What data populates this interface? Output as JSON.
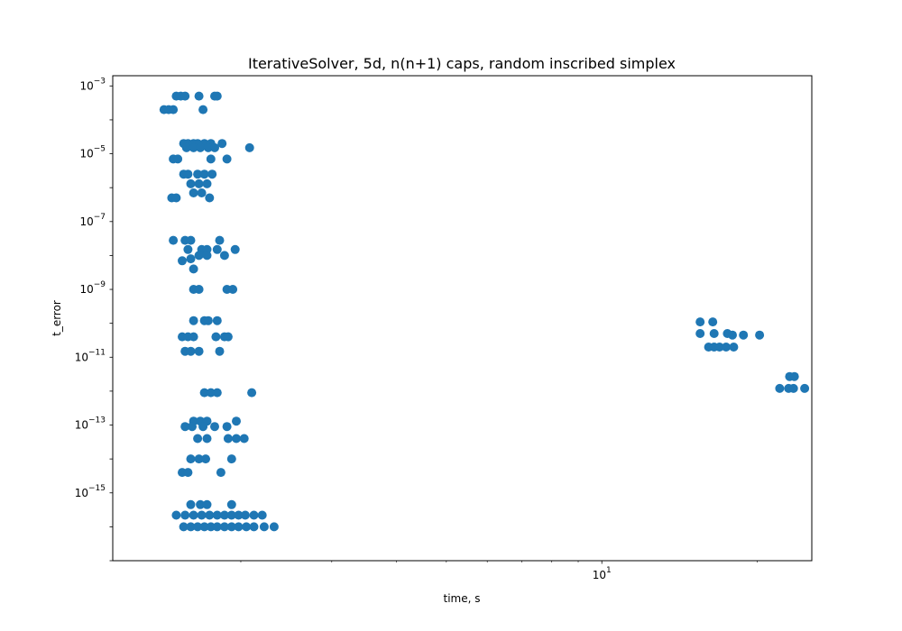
{
  "chart_data": {
    "type": "scatter",
    "title": "IterativeSolver, 5d, n(n+1) caps, random inscribed simplex",
    "xlabel": "time, s",
    "ylabel": "t_error",
    "xscale": "log",
    "yscale": "log",
    "xlim": [
      1.13,
      25.5
    ],
    "ylim": [
      1e-17,
      0.002
    ],
    "grid": false,
    "marker_color": "#1f77b4",
    "x_ticks": [
      {
        "value": 10,
        "label": "10^1"
      }
    ],
    "y_ticks": [
      {
        "value": 0.001,
        "label": "10^-3"
      },
      {
        "value": 1e-05,
        "label": "10^-5"
      },
      {
        "value": 1e-07,
        "label": "10^-7"
      },
      {
        "value": 1e-09,
        "label": "10^-9"
      },
      {
        "value": 1e-11,
        "label": "10^-11"
      },
      {
        "value": 1e-13,
        "label": "10^-13"
      },
      {
        "value": 1e-15,
        "label": "10^-15"
      }
    ],
    "series": [
      {
        "values": [
          [
            1.42,
            0.0002
          ],
          [
            1.45,
            0.0002
          ],
          [
            1.48,
            0.0002
          ],
          [
            1.5,
            0.0005
          ],
          [
            1.53,
            0.0005
          ],
          [
            1.56,
            0.0005
          ],
          [
            1.66,
            0.0005
          ],
          [
            1.69,
            0.0002
          ],
          [
            1.78,
            0.0005
          ],
          [
            1.8,
            0.0005
          ],
          [
            1.55,
            2e-05
          ],
          [
            1.58,
            2e-05
          ],
          [
            1.62,
            2e-05
          ],
          [
            1.65,
            2e-05
          ],
          [
            1.7,
            2e-05
          ],
          [
            1.75,
            2e-05
          ],
          [
            1.84,
            2e-05
          ],
          [
            1.57,
            1.5e-05
          ],
          [
            1.62,
            1.5e-05
          ],
          [
            1.67,
            1.5e-05
          ],
          [
            1.73,
            1.5e-05
          ],
          [
            1.78,
            1.5e-05
          ],
          [
            2.08,
            1.5e-05
          ],
          [
            1.48,
            7e-06
          ],
          [
            1.51,
            7e-06
          ],
          [
            1.75,
            7e-06
          ],
          [
            1.88,
            7e-06
          ],
          [
            1.55,
            2.5e-06
          ],
          [
            1.58,
            2.5e-06
          ],
          [
            1.65,
            2.5e-06
          ],
          [
            1.7,
            2.5e-06
          ],
          [
            1.76,
            2.5e-06
          ],
          [
            1.6,
            1.3e-06
          ],
          [
            1.66,
            1.3e-06
          ],
          [
            1.72,
            1.3e-06
          ],
          [
            1.62,
            7e-07
          ],
          [
            1.68,
            7e-07
          ],
          [
            1.47,
            5e-07
          ],
          [
            1.5,
            5e-07
          ],
          [
            1.74,
            5e-07
          ],
          [
            1.48,
            2.8e-08
          ],
          [
            1.56,
            2.8e-08
          ],
          [
            1.6,
            2.8e-08
          ],
          [
            1.82,
            2.8e-08
          ],
          [
            1.58,
            1.5e-08
          ],
          [
            1.68,
            1.5e-08
          ],
          [
            1.72,
            1.5e-08
          ],
          [
            1.8,
            1.5e-08
          ],
          [
            1.95,
            1.5e-08
          ],
          [
            1.54,
            7e-09
          ],
          [
            1.6,
            8e-09
          ],
          [
            1.66,
            1e-08
          ],
          [
            1.72,
            1e-08
          ],
          [
            1.86,
            1e-08
          ],
          [
            1.62,
            4e-09
          ],
          [
            1.62,
            1e-09
          ],
          [
            1.66,
            1e-09
          ],
          [
            1.88,
            1e-09
          ],
          [
            1.93,
            1e-09
          ],
          [
            1.62,
            1.2e-10
          ],
          [
            1.7,
            1.2e-10
          ],
          [
            1.73,
            1.2e-10
          ],
          [
            1.8,
            1.2e-10
          ],
          [
            1.54,
            4e-11
          ],
          [
            1.58,
            4e-11
          ],
          [
            1.62,
            4e-11
          ],
          [
            1.79,
            4e-11
          ],
          [
            1.86,
            4e-11
          ],
          [
            1.89,
            4e-11
          ],
          [
            1.56,
            1.5e-11
          ],
          [
            1.6,
            1.5e-11
          ],
          [
            1.66,
            1.5e-11
          ],
          [
            1.82,
            1.5e-11
          ],
          [
            1.7,
            9e-13
          ],
          [
            1.75,
            9e-13
          ],
          [
            1.8,
            9e-13
          ],
          [
            2.1,
            9e-13
          ],
          [
            1.62,
            1.3e-13
          ],
          [
            1.67,
            1.3e-13
          ],
          [
            1.72,
            1.3e-13
          ],
          [
            1.96,
            1.3e-13
          ],
          [
            1.56,
            9e-14
          ],
          [
            1.61,
            9e-14
          ],
          [
            1.69,
            9e-14
          ],
          [
            1.78,
            9e-14
          ],
          [
            1.88,
            9e-14
          ],
          [
            1.65,
            4e-14
          ],
          [
            1.72,
            4e-14
          ],
          [
            1.89,
            4e-14
          ],
          [
            1.96,
            4e-14
          ],
          [
            2.03,
            4e-14
          ],
          [
            1.6,
            1e-14
          ],
          [
            1.66,
            1e-14
          ],
          [
            1.71,
            1e-14
          ],
          [
            1.92,
            1e-14
          ],
          [
            1.54,
            4e-15
          ],
          [
            1.58,
            4e-15
          ],
          [
            1.83,
            4e-15
          ],
          [
            1.6,
            4.5e-16
          ],
          [
            1.67,
            4.5e-16
          ],
          [
            1.72,
            4.5e-16
          ],
          [
            1.92,
            4.5e-16
          ],
          [
            1.5,
            2.2e-16
          ],
          [
            1.56,
            2.2e-16
          ],
          [
            1.62,
            2.2e-16
          ],
          [
            1.68,
            2.2e-16
          ],
          [
            1.74,
            2.2e-16
          ],
          [
            1.8,
            2.2e-16
          ],
          [
            1.86,
            2.2e-16
          ],
          [
            1.92,
            2.2e-16
          ],
          [
            1.98,
            2.2e-16
          ],
          [
            2.04,
            2.2e-16
          ],
          [
            2.12,
            2.2e-16
          ],
          [
            2.2,
            2.2e-16
          ],
          [
            1.55,
            1e-16
          ],
          [
            1.6,
            1e-16
          ],
          [
            1.65,
            1e-16
          ],
          [
            1.7,
            1e-16
          ],
          [
            1.75,
            1e-16
          ],
          [
            1.8,
            1e-16
          ],
          [
            1.86,
            1e-16
          ],
          [
            1.92,
            1e-16
          ],
          [
            1.98,
            1e-16
          ],
          [
            2.05,
            1e-16
          ],
          [
            2.12,
            1e-16
          ],
          [
            2.22,
            1e-16
          ],
          [
            2.32,
            1e-16
          ],
          [
            15.5,
            1.1e-10
          ],
          [
            16.4,
            1.1e-10
          ],
          [
            15.5,
            5e-11
          ],
          [
            16.5,
            5e-11
          ],
          [
            17.5,
            5e-11
          ],
          [
            17.9,
            4.5e-11
          ],
          [
            18.8,
            4.5e-11
          ],
          [
            20.2,
            4.5e-11
          ],
          [
            16.1,
            2e-11
          ],
          [
            16.5,
            2e-11
          ],
          [
            16.9,
            2e-11
          ],
          [
            17.4,
            2e-11
          ],
          [
            18.0,
            2e-11
          ],
          [
            22.1,
            1.2e-12
          ],
          [
            23.0,
            1.2e-12
          ],
          [
            23.5,
            1.2e-12
          ],
          [
            24.7,
            1.2e-12
          ],
          [
            23.1,
            2.7e-12
          ],
          [
            23.6,
            2.7e-12
          ]
        ]
      }
    ]
  }
}
